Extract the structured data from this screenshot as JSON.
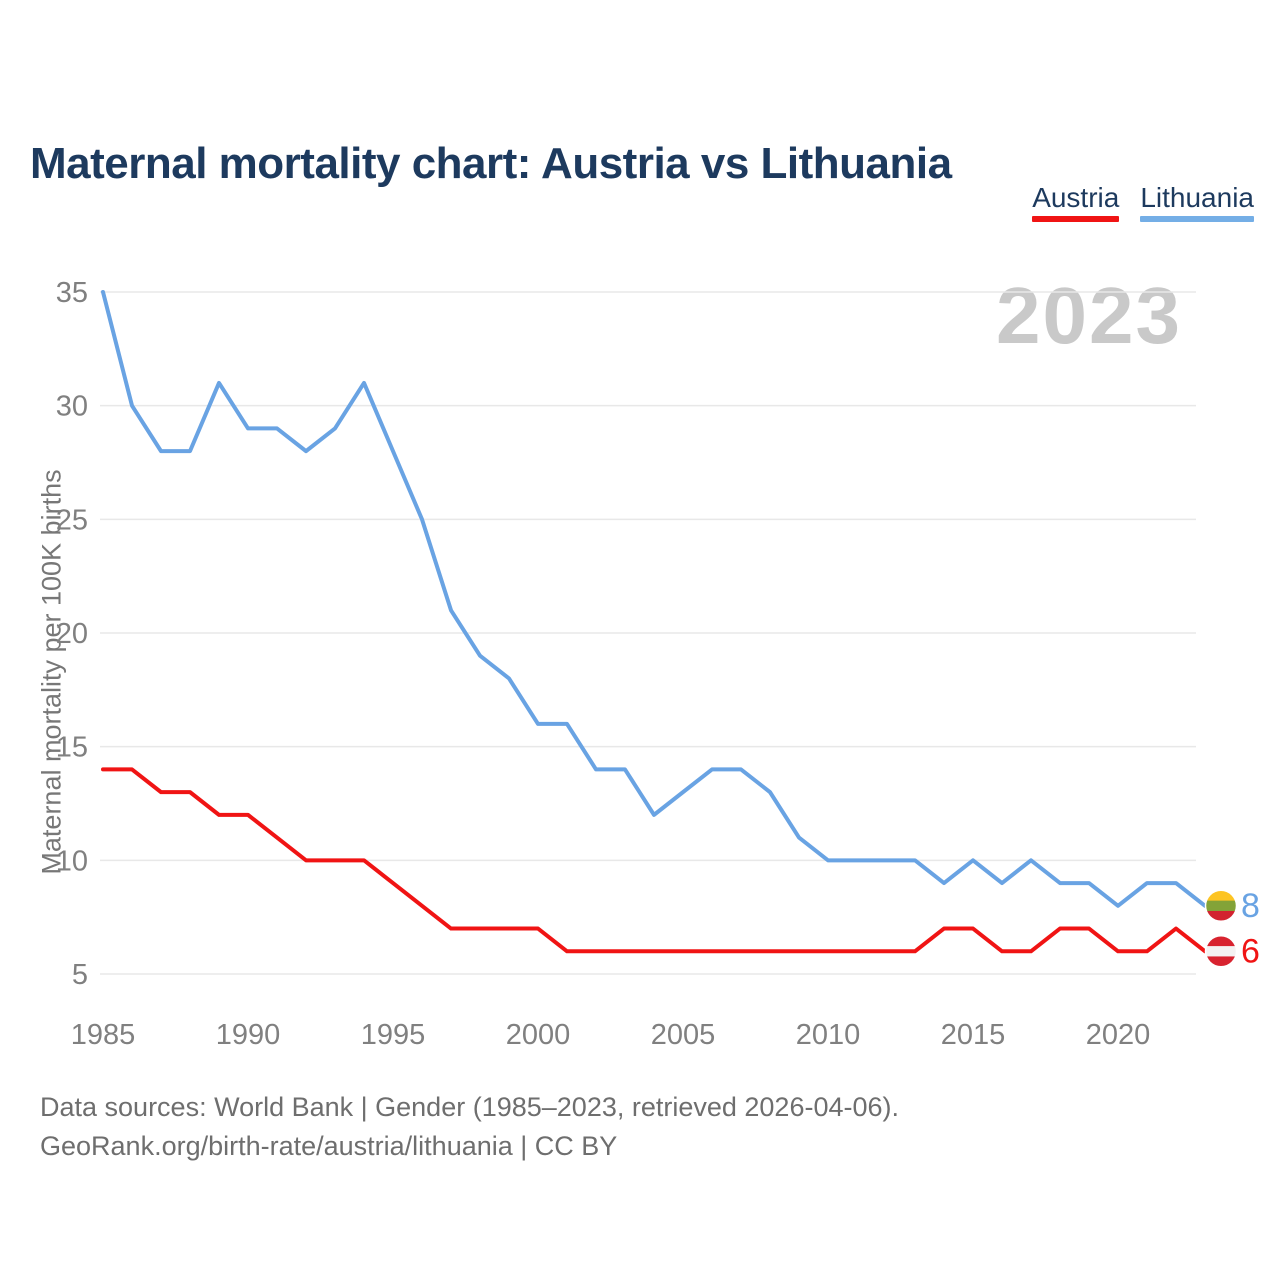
{
  "header": {
    "title": "Maternal mortality chart: Austria vs Lithuania"
  },
  "legend": {
    "items": [
      {
        "label": "Austria",
        "color": "#f01414"
      },
      {
        "label": "Lithuania",
        "color": "#74aee6"
      }
    ]
  },
  "watermark": "2023",
  "chart_data": {
    "type": "line",
    "title": "Maternal mortality chart: Austria vs Lithuania",
    "xlabel": "",
    "ylabel": "Maternal mortality per 100K births",
    "x_range": [
      1985,
      2023
    ],
    "ylim": [
      5,
      35
    ],
    "xticks": [
      1985,
      1990,
      1995,
      2000,
      2005,
      2010,
      2015,
      2020
    ],
    "yticks": [
      5,
      10,
      15,
      20,
      25,
      30,
      35
    ],
    "grid": "horizontal",
    "legend_position": "top-right",
    "x": [
      1985,
      1986,
      1987,
      1988,
      1989,
      1990,
      1991,
      1992,
      1993,
      1994,
      1995,
      1996,
      1997,
      1998,
      1999,
      2000,
      2001,
      2002,
      2003,
      2004,
      2005,
      2006,
      2007,
      2008,
      2009,
      2010,
      2011,
      2012,
      2013,
      2014,
      2015,
      2016,
      2017,
      2018,
      2019,
      2020,
      2021,
      2022,
      2023
    ],
    "series": [
      {
        "name": "Lithuania",
        "color": "#69a3e3",
        "end_value": 8,
        "flag": "lithuania",
        "values": [
          35,
          30,
          28,
          28,
          31,
          29,
          29,
          28,
          29,
          31,
          28,
          25,
          21,
          19,
          18,
          16,
          16,
          14,
          14,
          12,
          13,
          14,
          14,
          13,
          11,
          10,
          10,
          10,
          10,
          9,
          10,
          9,
          10,
          9,
          9,
          8,
          9,
          9,
          8
        ]
      },
      {
        "name": "Austria",
        "color": "#f01414",
        "end_value": 6,
        "flag": "austria",
        "values": [
          14,
          14,
          13,
          13,
          12,
          12,
          11,
          10,
          10,
          10,
          9,
          8,
          7,
          7,
          7,
          7,
          6,
          6,
          6,
          6,
          6,
          6,
          6,
          6,
          6,
          6,
          6,
          6,
          6,
          7,
          7,
          6,
          6,
          7,
          7,
          6,
          6,
          7,
          6
        ]
      }
    ],
    "flag_colors": {
      "lithuania": [
        "#fdc423",
        "#83a338",
        "#d2232f"
      ],
      "austria": [
        "#d8232f",
        "#f4f2f2",
        "#d8232f"
      ]
    },
    "axis_text_color": "#808080",
    "gridline_color": "#e8e8e8"
  },
  "footer": {
    "line1": "Data sources: World Bank | Gender (1985–2023, retrieved 2026-04-06).",
    "line2": "GeoRank.org/birth-rate/austria/lithuania | CC BY"
  }
}
